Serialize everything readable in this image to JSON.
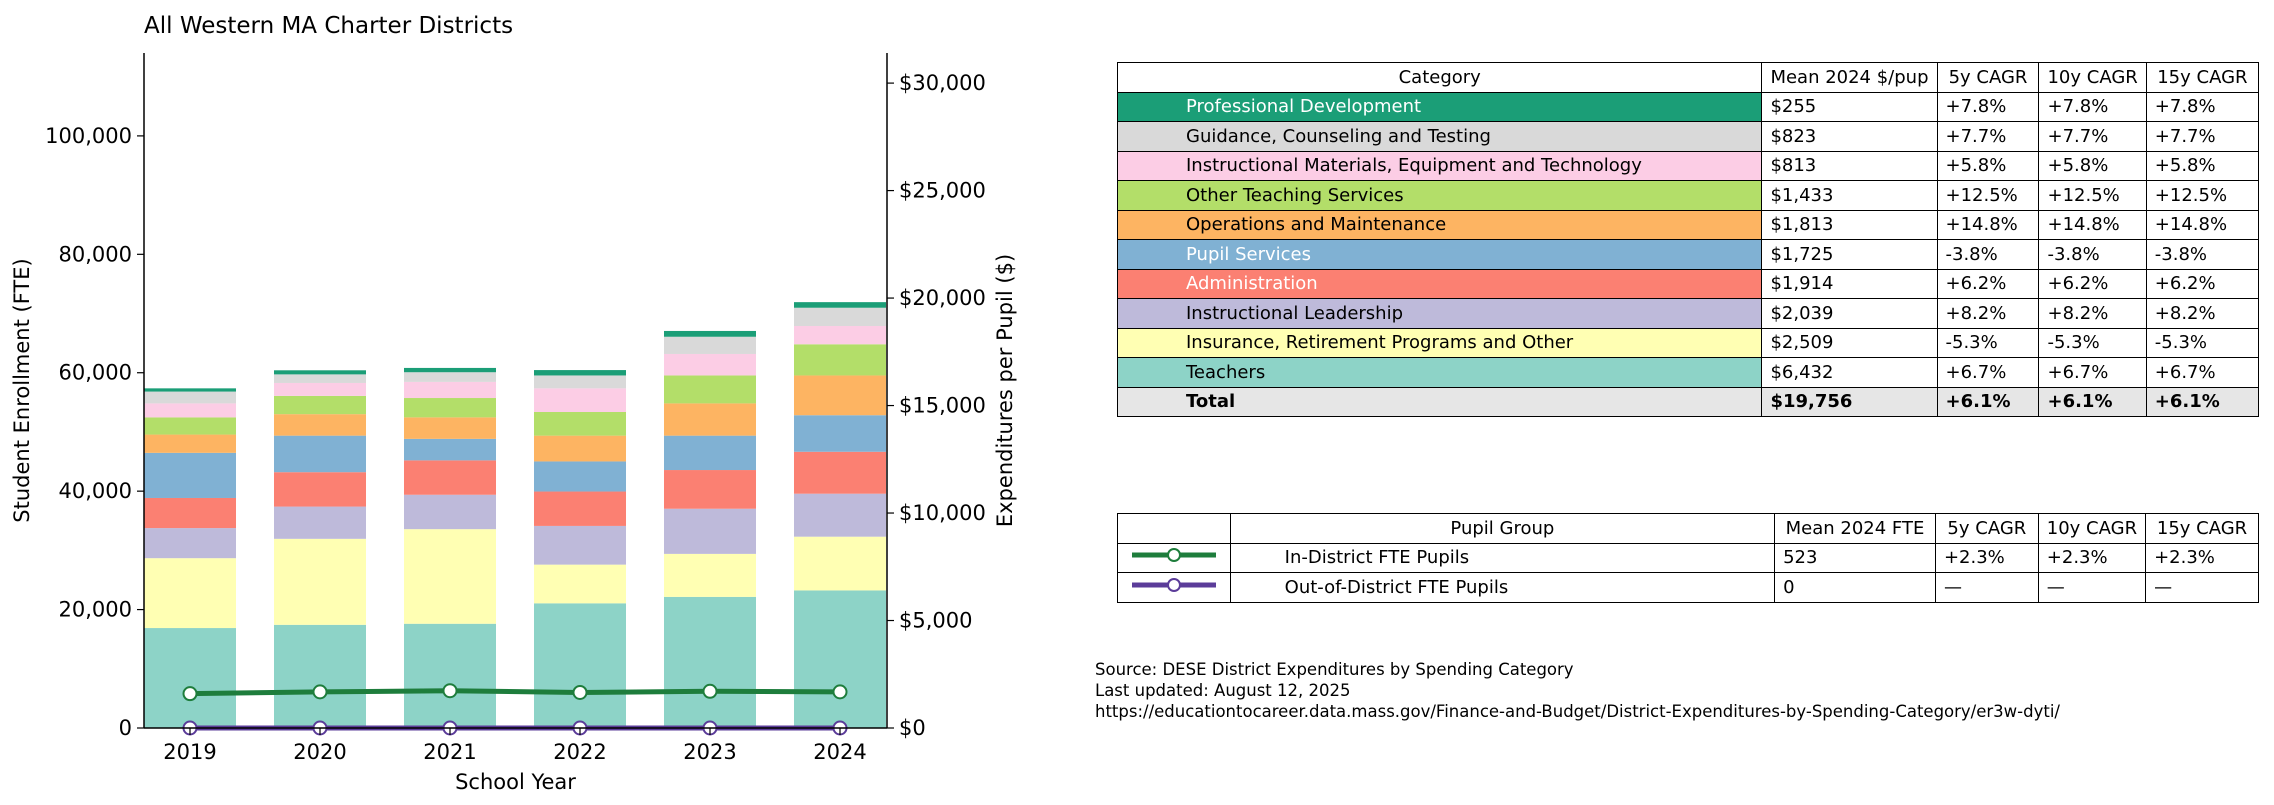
{
  "chart_data": {
    "type": "bar",
    "title": "All Western MA Charter Districts",
    "xlabel": "School Year",
    "ylabel_left": "Student Enrollment (FTE)",
    "ylabel_right": "Expenditures per Pupil ($)",
    "categories": [
      "2019",
      "2020",
      "2021",
      "2022",
      "2023",
      "2024"
    ],
    "ylim_left": [
      0,
      114000
    ],
    "yticks_left": [
      "0",
      "20,000",
      "40,000",
      "60,000",
      "80,000",
      "100,000"
    ],
    "ylim_right": [
      0,
      31400
    ],
    "yticks_right": [
      "$0",
      "$5,000",
      "$10,000",
      "$15,000",
      "$20,000",
      "$25,000",
      "$30,000"
    ],
    "grid": false,
    "stack_series": [
      {
        "name": "Teachers",
        "color": "#8dd3c7",
        "values": [
          4650,
          4800,
          4850,
          5800,
          6100,
          6400
        ]
      },
      {
        "name": "Insurance, Retirement Programs and Other",
        "color": "#ffffb3",
        "values": [
          3250,
          4000,
          4400,
          1800,
          2000,
          2500
        ]
      },
      {
        "name": "Instructional Leadership",
        "color": "#bebada",
        "values": [
          1400,
          1500,
          1600,
          1800,
          2100,
          2000
        ]
      },
      {
        "name": "Administration",
        "color": "#fb8072",
        "values": [
          1400,
          1600,
          1600,
          1600,
          1800,
          1950
        ]
      },
      {
        "name": "Pupil Services",
        "color": "#80b1d3",
        "values": [
          2100,
          1700,
          1000,
          1400,
          1600,
          1700
        ]
      },
      {
        "name": "Operations and Maintenance",
        "color": "#fdb462",
        "values": [
          850,
          1000,
          1000,
          1200,
          1500,
          1850
        ]
      },
      {
        "name": "Other Teaching Services",
        "color": "#b3de69",
        "values": [
          800,
          850,
          900,
          1100,
          1300,
          1450
        ]
      },
      {
        "name": "Instructional Materials, Equipment and Technology",
        "color": "#fccde5",
        "values": [
          650,
          600,
          750,
          1100,
          1000,
          850
        ]
      },
      {
        "name": "Guidance, Counseling and Testing",
        "color": "#d9d9d9",
        "values": [
          550,
          400,
          450,
          600,
          800,
          850
        ]
      },
      {
        "name": "Professional Development",
        "color": "#1b9e77",
        "values": [
          150,
          190,
          200,
          250,
          270,
          260
        ]
      }
    ],
    "line_series": [
      {
        "name": "In-District FTE Pupils",
        "color": "#1e7d3c",
        "values": [
          5800,
          6100,
          6300,
          6000,
          6200,
          6100
        ]
      },
      {
        "name": "Out-of-District FTE Pupils",
        "color": "#5b3c99",
        "values": [
          0,
          0,
          0,
          0,
          0,
          0
        ]
      }
    ]
  },
  "category_table": {
    "headers": [
      "Category",
      "Mean 2024 $/pup",
      "5y CAGR",
      "10y CAGR",
      "15y CAGR"
    ],
    "rows": [
      {
        "category": "Professional Development",
        "color": "#1b9e77",
        "text_color": "#ffffff",
        "mean": "$255",
        "c5": "+7.8%",
        "c10": "+7.8%",
        "c15": "+7.8%"
      },
      {
        "category": "Guidance, Counseling and Testing",
        "color": "#d9d9d9",
        "text_color": "#000000",
        "mean": "$823",
        "c5": "+7.7%",
        "c10": "+7.7%",
        "c15": "+7.7%"
      },
      {
        "category": "Instructional Materials, Equipment and Technology",
        "color": "#fccde5",
        "text_color": "#000000",
        "mean": "$813",
        "c5": "+5.8%",
        "c10": "+5.8%",
        "c15": "+5.8%"
      },
      {
        "category": "Other Teaching Services",
        "color": "#b3de69",
        "text_color": "#000000",
        "mean": "$1,433",
        "c5": "+12.5%",
        "c10": "+12.5%",
        "c15": "+12.5%"
      },
      {
        "category": "Operations and Maintenance",
        "color": "#fdb462",
        "text_color": "#000000",
        "mean": "$1,813",
        "c5": "+14.8%",
        "c10": "+14.8%",
        "c15": "+14.8%"
      },
      {
        "category": "Pupil Services",
        "color": "#80b1d3",
        "text_color": "#ffffff",
        "mean": "$1,725",
        "c5": "-3.8%",
        "c10": "-3.8%",
        "c15": "-3.8%"
      },
      {
        "category": "Administration",
        "color": "#fb8072",
        "text_color": "#ffffff",
        "mean": "$1,914",
        "c5": "+6.2%",
        "c10": "+6.2%",
        "c15": "+6.2%"
      },
      {
        "category": "Instructional Leadership",
        "color": "#bebada",
        "text_color": "#000000",
        "mean": "$2,039",
        "c5": "+8.2%",
        "c10": "+8.2%",
        "c15": "+8.2%"
      },
      {
        "category": "Insurance, Retirement Programs and Other",
        "color": "#ffffb3",
        "text_color": "#000000",
        "mean": "$2,509",
        "c5": "-5.3%",
        "c10": "-5.3%",
        "c15": "-5.3%"
      },
      {
        "category": "Teachers",
        "color": "#8dd3c7",
        "text_color": "#000000",
        "mean": "$6,432",
        "c5": "+6.7%",
        "c10": "+6.7%",
        "c15": "+6.7%"
      }
    ],
    "total": {
      "category": "Total",
      "mean": "$19,756",
      "c5": "+6.1%",
      "c10": "+6.1%",
      "c15": "+6.1%"
    }
  },
  "group_table": {
    "headers": [
      "Pupil Group",
      "Mean 2024 FTE",
      "5y CAGR",
      "10y CAGR",
      "15y CAGR"
    ],
    "rows": [
      {
        "group": "In-District FTE Pupils",
        "color": "#1e7d3c",
        "mean": "523",
        "c5": "+2.3%",
        "c10": "+2.3%",
        "c15": "+2.3%"
      },
      {
        "group": "Out-of-District FTE Pupils",
        "color": "#5b3c99",
        "mean": "0",
        "c5": "—",
        "c10": "—",
        "c15": "—"
      }
    ]
  },
  "source": {
    "line1": "Source: DESE District Expenditures by Spending Category",
    "line2": "Last updated: August 12, 2025",
    "line3": "https://educationtocareer.data.mass.gov/Finance-and-Budget/District-Expenditures-by-Spending-Category/er3w-dyti/"
  }
}
